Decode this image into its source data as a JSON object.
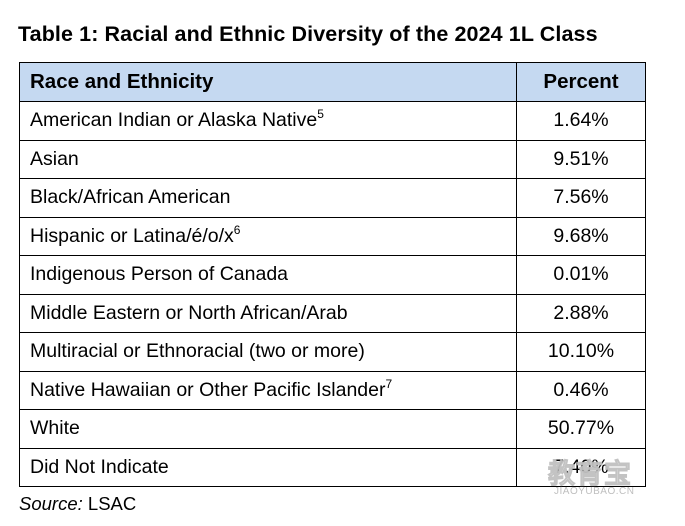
{
  "title": "Table 1: Racial and Ethnic Diversity of the 2024 1L Class",
  "table": {
    "headers": {
      "race": "Race and Ethnicity",
      "percent": "Percent"
    },
    "rows": [
      {
        "label": "American Indian or Alaska Native",
        "footnote": "5",
        "value": "1.64%"
      },
      {
        "label": "Asian",
        "footnote": "",
        "value": "9.51%"
      },
      {
        "label": "Black/African American",
        "footnote": "",
        "value": "7.56%"
      },
      {
        "label": "Hispanic or Latina/é/o/x",
        "footnote": "6",
        "value": "9.68%"
      },
      {
        "label": "Indigenous Person of Canada",
        "footnote": "",
        "value": "0.01%"
      },
      {
        "label": "Middle Eastern or North African/Arab",
        "footnote": "",
        "value": "2.88%"
      },
      {
        "label": "Multiracial or Ethnoracial (two or more)",
        "footnote": "",
        "value": "10.10%"
      },
      {
        "label": "Native Hawaiian or Other Pacific Islander",
        "footnote": "7",
        "value": "0.46%"
      },
      {
        "label": "White",
        "footnote": "",
        "value": "50.77%"
      },
      {
        "label": "Did Not Indicate",
        "footnote": "",
        "value": "7.40%"
      }
    ]
  },
  "source": {
    "label": "Source:",
    "text": "LSAC"
  },
  "watermark": {
    "glyphs": "教育宝",
    "url": "JIAOYUBAO.CN"
  },
  "colors": {
    "header_bg": "#c5d9f1",
    "border": "#000000"
  }
}
